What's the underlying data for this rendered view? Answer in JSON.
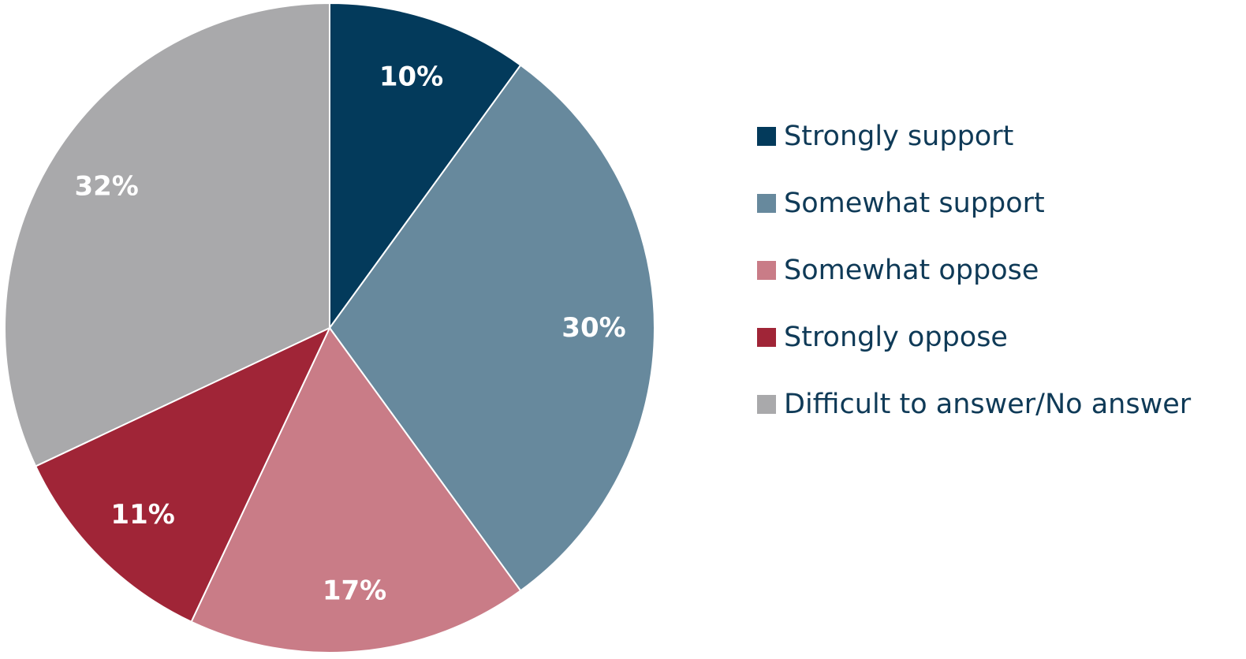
{
  "chart_data": {
    "type": "pie",
    "title": "",
    "slices": [
      {
        "label": "Strongly support",
        "value": 10,
        "display": "10%",
        "color": "#033a5b"
      },
      {
        "label": "Somewhat support",
        "value": 30,
        "display": "30%",
        "color": "#67899d"
      },
      {
        "label": "Somewhat oppose",
        "value": 17,
        "display": "17%",
        "color": "#c97c87"
      },
      {
        "label": "Strongly oppose",
        "value": 11,
        "display": "11%",
        "color": "#a02537"
      },
      {
        "label": "Difficult to answer/No answer",
        "value": 32,
        "display": "32%",
        "color": "#a9a9ab"
      }
    ],
    "start_angle": "12 o'clock",
    "direction": "clockwise",
    "legend_position": "right"
  }
}
